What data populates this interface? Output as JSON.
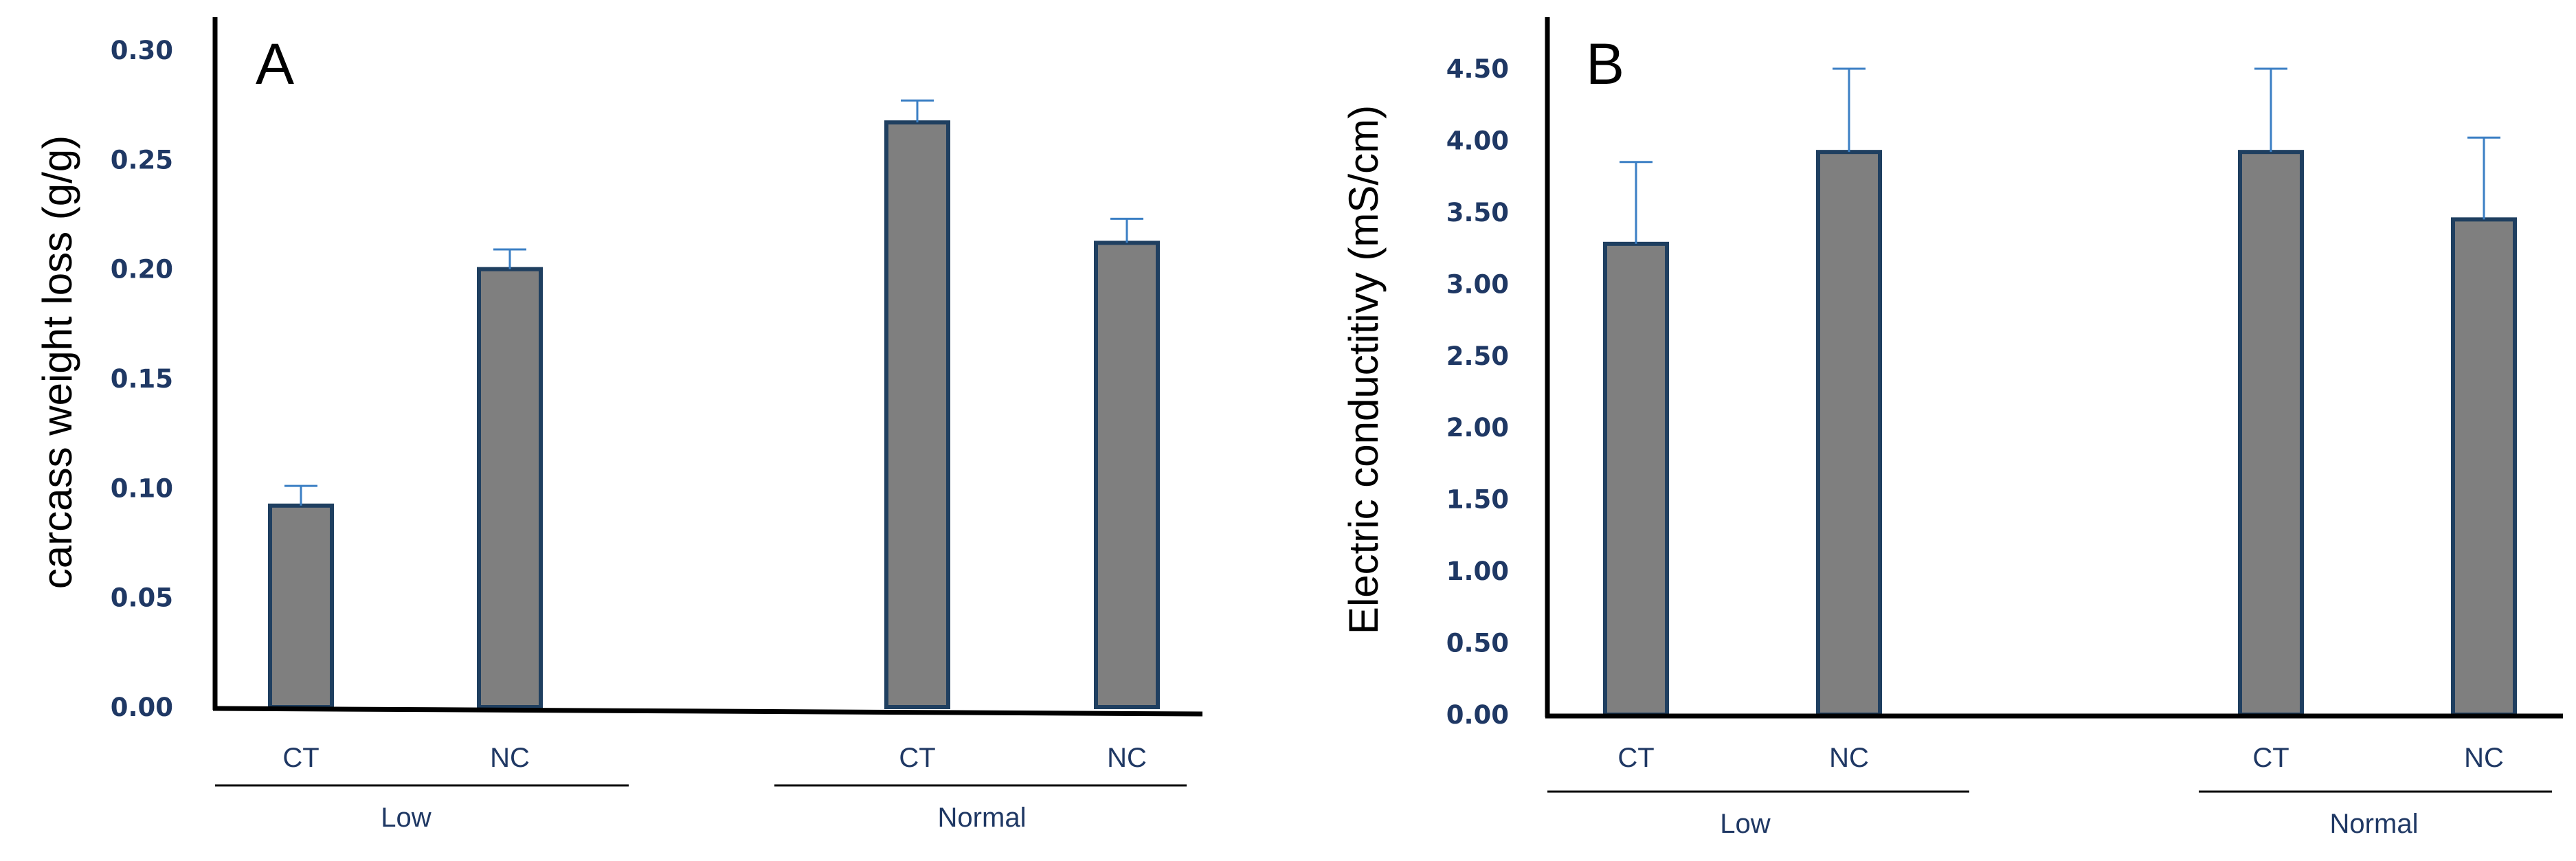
{
  "colors": {
    "bar_fill": "#7f7f7f",
    "bar_stroke": "#1f3f60",
    "error_bar": "#3b7fc4",
    "tick_text": "#1f3864",
    "axis": "#000000"
  },
  "chart_data": [
    {
      "type": "bar",
      "panel_label": "A",
      "ylabel": "carcass weight loss (g/g)",
      "ylim": [
        0,
        0.3
      ],
      "yticks": [
        "0.00",
        "0.05",
        "0.10",
        "0.15",
        "0.20",
        "0.25",
        "0.30"
      ],
      "categories": [
        "CT",
        "NC",
        "CT",
        "NC"
      ],
      "groups": [
        "Low",
        "Normal"
      ],
      "values": [
        0.092,
        0.2,
        0.267,
        0.212
      ],
      "errors": [
        0.009,
        0.009,
        0.01,
        0.011
      ],
      "grid": false
    },
    {
      "type": "bar",
      "panel_label": "B",
      "ylabel": "Electric conductitivy (mS/cm)",
      "ylim": [
        0,
        4.5
      ],
      "yticks": [
        "0.00",
        "0.50",
        "1.00",
        "1.50",
        "2.00",
        "2.50",
        "3.00",
        "3.50",
        "4.00",
        "4.50"
      ],
      "categories": [
        "CT",
        "NC",
        "CT",
        "NC"
      ],
      "groups": [
        "Low",
        "Normal"
      ],
      "values": [
        3.28,
        3.92,
        3.92,
        3.45
      ],
      "errors": [
        0.57,
        0.58,
        0.58,
        0.57
      ],
      "grid": false
    }
  ]
}
